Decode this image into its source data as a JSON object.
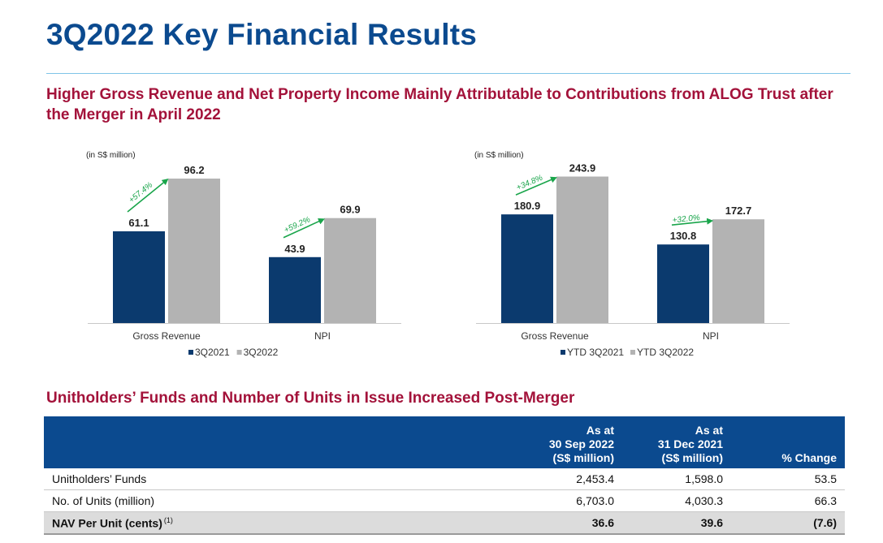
{
  "page": {
    "title": "3Q2022 Key Financial Results",
    "subheading": "Higher Gross Revenue and Net Property Income Mainly Attributable to Contributions from ALOG Trust after the Merger in April 2022",
    "table_heading": "Unitholders’ Funds and Number of Units in Issue Increased Post-Merger"
  },
  "colors": {
    "title": "#0b4a8f",
    "subheading": "#a3123a",
    "series_dark": "#0b3a6e",
    "series_light": "#b3b3b3",
    "growth_arrow": "#1aa54b",
    "table_header": "#0b4a8f"
  },
  "chart_data": [
    {
      "type": "bar",
      "unit_label": "(in S$ million)",
      "categories": [
        "Gross Revenue",
        "NPI"
      ],
      "series": [
        {
          "name": "3Q2021",
          "values": [
            61.1,
            43.9
          ],
          "labels": [
            "61.1",
            "43.9"
          ],
          "color": "#0b3a6e"
        },
        {
          "name": "3Q2022",
          "values": [
            96.2,
            69.9
          ],
          "labels": [
            "96.2",
            "69.9"
          ],
          "color": "#b3b3b3"
        }
      ],
      "growth": [
        "+57.4%",
        "+59.2%"
      ],
      "ylim": [
        0,
        100
      ],
      "legend": "bottom",
      "grid": false
    },
    {
      "type": "bar",
      "unit_label": "(in S$ million)",
      "categories": [
        "Gross Revenue",
        "NPI"
      ],
      "series": [
        {
          "name": "YTD 3Q2021",
          "values": [
            180.9,
            130.8
          ],
          "labels": [
            "180.9",
            "130.8"
          ],
          "color": "#0b3a6e"
        },
        {
          "name": "YTD 3Q2022",
          "values": [
            243.9,
            172.7
          ],
          "labels": [
            "243.9",
            "172.7"
          ],
          "color": "#b3b3b3"
        }
      ],
      "growth": [
        "+34.8%",
        "+32.0%"
      ],
      "ylim": [
        0,
        250
      ],
      "legend": "bottom",
      "grid": false
    }
  ],
  "table": {
    "columns": [
      "",
      [
        "As at",
        "30 Sep 2022",
        "(S$ million)"
      ],
      [
        "As at",
        "31 Dec 2021",
        "(S$ million)"
      ],
      [
        "% Change"
      ]
    ],
    "rows": [
      {
        "label": "Unitholders’ Funds",
        "footnote": "",
        "values": [
          "2,453.4",
          "1,598.0",
          "53.5"
        ]
      },
      {
        "label": "No. of Units (million)",
        "footnote": "",
        "values": [
          "6,703.0",
          "4,030.3",
          "66.3"
        ]
      },
      {
        "label": "NAV Per Unit (cents)",
        "footnote": "(1)",
        "values": [
          "36.6",
          "39.6",
          "(7.6)"
        ]
      }
    ]
  }
}
